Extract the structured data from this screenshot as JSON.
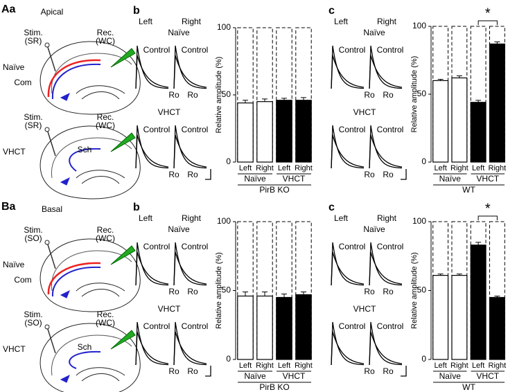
{
  "diagrams": [
    {
      "label": "Aa",
      "title": "Apical",
      "rows": [
        {
          "condition": "Naïve",
          "stim": [
            "Stim.",
            "(SR)"
          ],
          "rec": [
            "Rec.",
            "(WC)"
          ],
          "pathway": "Com"
        },
        {
          "condition": "VHCT",
          "stim": [
            "Stim.",
            "(SR)"
          ],
          "rec": [
            "Rec.",
            "(WC)"
          ],
          "pathway": "Sch"
        }
      ]
    },
    {
      "label": "Ba",
      "title": "Basal",
      "rows": [
        {
          "condition": "Naïve",
          "stim": [
            "Stim.",
            "(SO)"
          ],
          "rec": [
            "Rec.",
            "(WC)"
          ],
          "pathway": "Com"
        },
        {
          "condition": "VHCT",
          "stim": [
            "Stim.",
            "(SO)"
          ],
          "rec": [
            "Rec.",
            "(WC)"
          ],
          "pathway": "Sch"
        }
      ]
    }
  ],
  "traces": [
    {
      "label": "b",
      "left": "Left",
      "right": "Right",
      "rows": [
        {
          "condition": "Naïve",
          "labels": [
            "Control",
            "Control",
            "Ro",
            "Ro"
          ]
        },
        {
          "condition": "VHCT",
          "labels": [
            "Control",
            "Control",
            "Ro",
            "Ro"
          ]
        }
      ]
    },
    {
      "label": "c",
      "left": "Left",
      "right": "Right",
      "rows": [
        {
          "condition": "Naïve",
          "labels": [
            "Control",
            "Control",
            "Ro",
            "Ro"
          ]
        },
        {
          "condition": "VHCT",
          "labels": [
            "Control",
            "Control",
            "Ro",
            "Ro"
          ]
        }
      ]
    },
    {
      "label": "b",
      "left": "Left",
      "right": "Right",
      "rows": [
        {
          "condition": "Naïve",
          "labels": [
            "Control",
            "Control",
            "Ro",
            "Ro"
          ]
        },
        {
          "condition": "VHCT",
          "labels": [
            "Control",
            "Control",
            "Ro",
            "Ro"
          ]
        }
      ]
    },
    {
      "label": "c",
      "left": "Left",
      "right": "Right",
      "rows": [
        {
          "condition": "Naïve",
          "labels": [
            "Control",
            "Control",
            "Ro",
            "Ro"
          ]
        },
        {
          "condition": "VHCT",
          "labels": [
            "Control",
            "Control",
            "Ro",
            "Ro"
          ]
        }
      ]
    }
  ],
  "chart_data": [
    {
      "type": "bar",
      "ylabel": "Relative amplitude (%)",
      "xlabel": "PirB KO",
      "categories": [
        "Left",
        "Right",
        "Left",
        "Right"
      ],
      "groups": [
        "Naïve",
        "VHCT"
      ],
      "values": [
        44,
        45,
        46,
        46
      ],
      "errors": [
        2,
        2,
        1.5,
        2
      ],
      "colors": [
        "#ffffff",
        "#ffffff",
        "#000000",
        "#000000"
      ],
      "ylim": [
        0,
        100
      ],
      "yticks": [
        0,
        50,
        100
      ]
    },
    {
      "type": "bar",
      "ylabel": "Relative amplitude (%)",
      "xlabel": "WT",
      "categories": [
        "Left",
        "Right",
        "Left",
        "Right"
      ],
      "groups": [
        "Naïve",
        "VHCT"
      ],
      "values": [
        60,
        62,
        44,
        87
      ],
      "errors": [
        1,
        1.5,
        1.5,
        1.5
      ],
      "colors": [
        "#ffffff",
        "#ffffff",
        "#000000",
        "#000000"
      ],
      "ylim": [
        0,
        100
      ],
      "yticks": [
        0,
        50,
        100
      ],
      "annotation": "*"
    },
    {
      "type": "bar",
      "ylabel": "Relative amplitude (%)",
      "xlabel": "PirB KO",
      "categories": [
        "Left",
        "Right",
        "Left",
        "Right"
      ],
      "groups": [
        "Naïve",
        "VHCT"
      ],
      "values": [
        46,
        46,
        45,
        47
      ],
      "errors": [
        3,
        3,
        2.5,
        2
      ],
      "colors": [
        "#ffffff",
        "#ffffff",
        "#000000",
        "#000000"
      ],
      "ylim": [
        0,
        100
      ],
      "yticks": [
        0,
        50,
        100
      ]
    },
    {
      "type": "bar",
      "ylabel": "Relative amplitude (%)",
      "xlabel": "WT",
      "categories": [
        "Left",
        "Right",
        "Left",
        "Right"
      ],
      "groups": [
        "Naïve",
        "VHCT"
      ],
      "values": [
        61,
        61,
        83,
        45
      ],
      "errors": [
        1,
        1,
        2,
        1
      ],
      "colors": [
        "#ffffff",
        "#ffffff",
        "#000000",
        "#000000"
      ],
      "ylim": [
        0,
        100
      ],
      "yticks": [
        0,
        50,
        100
      ],
      "annotation": "*"
    }
  ]
}
